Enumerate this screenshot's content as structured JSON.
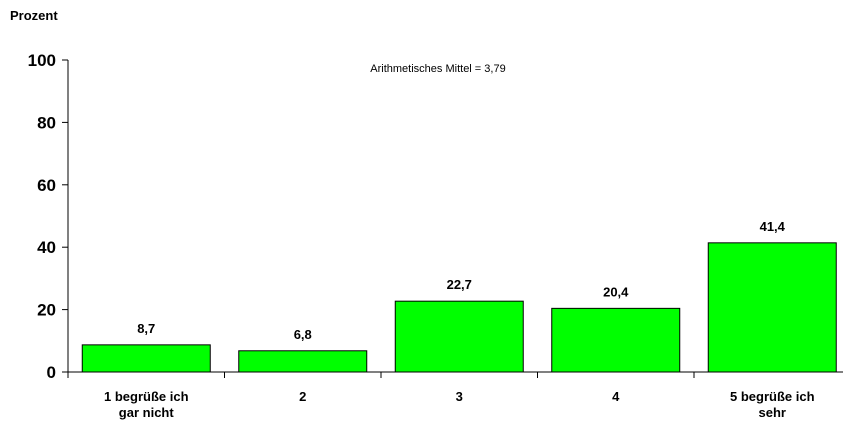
{
  "chart_data": {
    "type": "bar",
    "ylabel": "Prozent",
    "annotation": "Arithmetisches Mittel = 3,79",
    "ylim": [
      0,
      100
    ],
    "yticks": [
      0,
      20,
      40,
      60,
      80,
      100
    ],
    "categories": [
      [
        "1 begrüße ich",
        "gar nicht"
      ],
      [
        "2"
      ],
      [
        "3"
      ],
      [
        "4"
      ],
      [
        "5 begrüße ich",
        "sehr"
      ]
    ],
    "values": [
      8.7,
      6.8,
      22.7,
      20.4,
      41.4
    ],
    "value_labels": [
      "8,7",
      "6,8",
      "22,7",
      "20,4",
      "41,4"
    ],
    "bar_color": "#00ff00",
    "grid": false,
    "legend": "none"
  }
}
